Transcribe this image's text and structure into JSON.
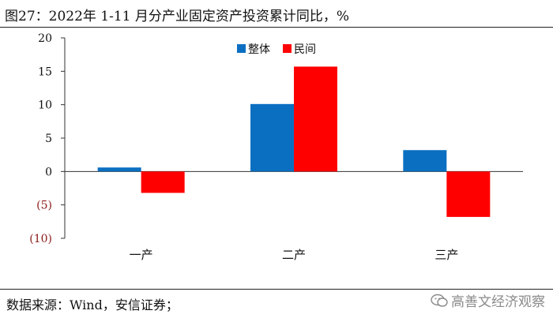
{
  "title": "图27：2022年 1-11 月分产业固定资产投资累计同比，%",
  "source": "数据来源：Wind，安信证券；",
  "watermark": "高善文经济观察",
  "watermark_icon": "wechat-icon",
  "colors": {
    "positive_tick": "#111111",
    "negative_tick": "#8b1a1a"
  },
  "chart_data": {
    "type": "bar",
    "categories": [
      "一产",
      "二产",
      "三产"
    ],
    "series": [
      {
        "name": "整体",
        "color": "#0b6fc1",
        "values": [
          0.6,
          10.1,
          3.2
        ]
      },
      {
        "name": "民间",
        "color": "#fe0000",
        "values": [
          -3.2,
          15.7,
          -6.8
        ]
      }
    ],
    "ylim": [
      -10,
      20
    ],
    "yticks": [
      20,
      15,
      10,
      5,
      0,
      -5,
      -10
    ],
    "ytick_labels": [
      "20",
      "15",
      "10",
      "5",
      "0",
      "(5)",
      "(10)"
    ],
    "legend_position": "top-center",
    "grid": false
  }
}
